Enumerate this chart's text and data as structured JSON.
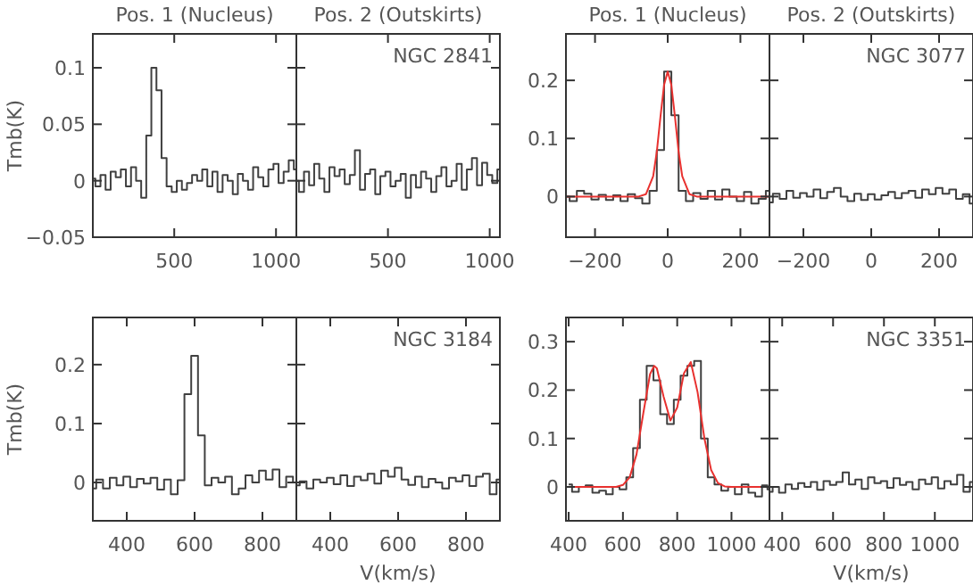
{
  "chart_data": [
    {
      "type": "step",
      "title": "Pos. 1 (Nucleus)",
      "ylabel": "Tmb(K)",
      "xlim": [
        100,
        1100
      ],
      "ylim": [
        -0.05,
        0.13
      ],
      "xticks": [
        500,
        1000
      ],
      "yticks": [
        {
          "value": -0.05,
          "label": "−0.05"
        },
        0,
        0.05,
        0.1
      ],
      "x": [
        100,
        125,
        150,
        175,
        200,
        225,
        250,
        275,
        300,
        325,
        350,
        375,
        400,
        425,
        450,
        475,
        500,
        525,
        550,
        575,
        600,
        625,
        650,
        675,
        700,
        725,
        750,
        775,
        800,
        825,
        850,
        875,
        900,
        925,
        950,
        975,
        1000,
        1025,
        1050,
        1075,
        1100
      ],
      "series": [
        {
          "color": "#404040",
          "values": [
            0.002,
            -0.005,
            0.005,
            -0.008,
            0.008,
            0.003,
            0.01,
            -0.005,
            0.012,
            0.0,
            -0.015,
            0.04,
            0.1,
            0.08,
            0.02,
            -0.005,
            -0.01,
            0.0,
            -0.008,
            -0.002,
            0.005,
            0.0,
            0.01,
            -0.005,
            0.008,
            -0.01,
            0.005,
            0.0,
            -0.012,
            0.006,
            0.0,
            -0.008,
            0.012,
            0.003,
            -0.005,
            0.01,
            0.015,
            -0.002,
            0.008,
            0.018,
            0.01
          ]
        }
      ]
    },
    {
      "type": "step",
      "title": "Pos. 2 (Outskirts)",
      "annotations": [
        "NGC 2841"
      ],
      "tick_labels": "x",
      "xlim": [
        50,
        1050
      ],
      "ylim": [
        -0.05,
        0.13
      ],
      "xticks": [
        500,
        1000
      ],
      "yticks": [
        -0.05,
        0,
        0.05,
        0.1
      ],
      "x": [
        50,
        75,
        100,
        125,
        150,
        175,
        200,
        225,
        250,
        275,
        300,
        325,
        350,
        375,
        400,
        425,
        450,
        475,
        500,
        525,
        550,
        575,
        600,
        625,
        650,
        675,
        700,
        725,
        750,
        775,
        800,
        825,
        850,
        875,
        900,
        925,
        950,
        975,
        1000,
        1025,
        1050
      ],
      "series": [
        {
          "color": "#404040",
          "values": [
            0.0,
            -0.01,
            0.008,
            -0.004,
            0.015,
            0.002,
            -0.01,
            0.012,
            0.004,
            0.01,
            -0.003,
            0.005,
            0.027,
            -0.008,
            0.006,
            0.01,
            -0.012,
            0.004,
            0.008,
            -0.005,
            0.0,
            0.006,
            -0.015,
            0.005,
            -0.006,
            0.008,
            0.002,
            -0.01,
            0.004,
            0.012,
            -0.005,
            0.0,
            0.015,
            -0.008,
            0.01,
            0.02,
            -0.004,
            0.016,
            0.005,
            -0.002,
            0.01
          ]
        }
      ]
    },
    {
      "type": "step",
      "title": "Pos. 1 (Nucleus)",
      "xlim": [
        -280,
        280
      ],
      "ylim": [
        -0.07,
        0.28
      ],
      "xticks": [
        {
          "value": -200,
          "label": "−200"
        },
        0,
        200
      ],
      "yticks": [
        0,
        0.1,
        0.2
      ],
      "x": [
        -280,
        -260,
        -240,
        -220,
        -200,
        -180,
        -160,
        -140,
        -120,
        -100,
        -80,
        -60,
        -40,
        -20,
        0,
        20,
        40,
        60,
        80,
        100,
        120,
        140,
        160,
        180,
        200,
        220,
        240,
        260,
        280
      ],
      "series": [
        {
          "color": "#404040",
          "values": [
            0.0,
            -0.008,
            0.01,
            0.005,
            -0.005,
            0.003,
            -0.006,
            0.002,
            -0.008,
            0.004,
            -0.003,
            -0.012,
            0.01,
            0.08,
            0.215,
            0.14,
            0.01,
            -0.008,
            0.006,
            -0.004,
            0.01,
            -0.005,
            0.012,
            0.0,
            -0.008,
            0.008,
            -0.012,
            -0.004,
            0.01
          ]
        },
        {
          "type": "line",
          "color": "#e8312f",
          "x": [
            -280,
            -80,
            -60,
            -40,
            -30,
            -20,
            -10,
            0,
            10,
            20,
            30,
            40,
            60,
            80,
            280
          ],
          "values": [
            0,
            0,
            0.004,
            0.035,
            0.077,
            0.137,
            0.192,
            0.215,
            0.192,
            0.137,
            0.077,
            0.035,
            0.004,
            0,
            0
          ]
        }
      ]
    },
    {
      "type": "step",
      "title": "Pos. 2 (Outskirts)",
      "annotations": [
        "NGC 3077"
      ],
      "tick_labels": "x",
      "xlim": [
        -300,
        300
      ],
      "ylim": [
        -0.07,
        0.28
      ],
      "xticks": [
        {
          "value": -200,
          "label": "−200"
        },
        0,
        200
      ],
      "yticks": [
        0,
        0.1,
        0.2
      ],
      "x": [
        -300,
        -280,
        -260,
        -240,
        -220,
        -200,
        -180,
        -160,
        -140,
        -120,
        -100,
        -80,
        -60,
        -40,
        -20,
        0,
        20,
        40,
        60,
        80,
        100,
        120,
        140,
        160,
        180,
        200,
        220,
        240,
        260,
        280,
        300
      ],
      "series": [
        {
          "color": "#404040",
          "values": [
            -0.01,
            0.005,
            -0.004,
            0.01,
            -0.002,
            0.006,
            0.0,
            0.012,
            -0.003,
            0.008,
            0.015,
            0.0,
            -0.008,
            0.005,
            -0.006,
            0.004,
            -0.005,
            0.002,
            0.008,
            -0.003,
            0.006,
            0.01,
            -0.002,
            0.012,
            0.004,
            0.015,
            0.005,
            0.012,
            -0.004,
            0.004,
            -0.012
          ]
        }
      ]
    },
    {
      "type": "step",
      "ylabel": "Tmb(K)",
      "xlim": [
        300,
        900
      ],
      "ylim": [
        -0.065,
        0.28
      ],
      "xticks": [
        400,
        600,
        800
      ],
      "yticks": [
        0,
        0.1,
        0.2
      ],
      "x": [
        300,
        320,
        340,
        360,
        380,
        400,
        420,
        440,
        460,
        480,
        500,
        520,
        540,
        560,
        580,
        600,
        620,
        640,
        660,
        680,
        700,
        720,
        740,
        760,
        780,
        800,
        820,
        840,
        860,
        880,
        900
      ],
      "series": [
        {
          "color": "#404040",
          "values": [
            -0.01,
            0.005,
            -0.01,
            0.008,
            -0.005,
            0.01,
            -0.008,
            0.006,
            -0.002,
            0.008,
            -0.012,
            0.005,
            -0.02,
            0.004,
            0.15,
            0.215,
            0.08,
            -0.005,
            0.008,
            0.0,
            0.01,
            -0.02,
            -0.01,
            0.012,
            0.0,
            0.02,
            0.005,
            0.022,
            -0.008,
            0.01,
            0.0
          ]
        }
      ]
    },
    {
      "type": "step",
      "annotations": [
        "NGC 3184"
      ],
      "xlabel": "V(km/s)",
      "tick_labels": "x",
      "xlim": [
        300,
        900
      ],
      "ylim": [
        -0.065,
        0.28
      ],
      "xticks": [
        400,
        600,
        800
      ],
      "yticks": [
        0,
        0.1,
        0.2
      ],
      "x": [
        300,
        320,
        340,
        360,
        380,
        400,
        420,
        440,
        460,
        480,
        500,
        520,
        540,
        560,
        580,
        600,
        620,
        640,
        660,
        680,
        700,
        720,
        740,
        760,
        780,
        800,
        820,
        840,
        860,
        880,
        900
      ],
      "series": [
        {
          "color": "#404040",
          "values": [
            -0.005,
            0.002,
            -0.01,
            0.005,
            0.0,
            0.008,
            -0.003,
            0.012,
            -0.006,
            0.01,
            0.004,
            0.015,
            -0.002,
            0.02,
            0.01,
            0.025,
            0.005,
            -0.004,
            0.01,
            -0.008,
            0.006,
            0.0,
            -0.01,
            0.008,
            0.002,
            0.012,
            -0.006,
            0.01,
            0.015,
            -0.02,
            0.005
          ]
        }
      ]
    },
    {
      "type": "step",
      "xlim": [
        390,
        1140
      ],
      "ylim": [
        -0.07,
        0.35
      ],
      "xticks": [
        400,
        600,
        800,
        1000
      ],
      "yticks": [
        0,
        0.1,
        0.2,
        0.3
      ],
      "x": [
        400,
        425,
        450,
        475,
        500,
        525,
        550,
        575,
        600,
        625,
        650,
        675,
        700,
        725,
        750,
        775,
        800,
        825,
        850,
        875,
        900,
        925,
        950,
        975,
        1000,
        1025,
        1050,
        1075,
        1100,
        1125,
        1140
      ],
      "series": [
        {
          "color": "#404040",
          "values": [
            0.005,
            -0.01,
            0.0,
            0.003,
            -0.012,
            -0.008,
            -0.015,
            0.0,
            -0.005,
            0.02,
            0.08,
            0.18,
            0.25,
            0.22,
            0.15,
            0.13,
            0.18,
            0.23,
            0.25,
            0.26,
            0.1,
            0.02,
            0.005,
            -0.008,
            0.0,
            -0.015,
            0.005,
            -0.012,
            -0.02,
            0.003,
            -0.005
          ]
        },
        {
          "type": "line",
          "color": "#e8312f",
          "x": [
            390,
            575,
            600,
            625,
            650,
            675,
            700,
            715,
            725,
            750,
            775,
            800,
            825,
            850,
            875,
            900,
            925,
            950,
            975,
            1000,
            1140
          ],
          "values": [
            0,
            0,
            0.004,
            0.02,
            0.067,
            0.152,
            0.233,
            0.25,
            0.245,
            0.186,
            0.137,
            0.164,
            0.235,
            0.258,
            0.196,
            0.101,
            0.035,
            0.008,
            0.001,
            0,
            0
          ]
        }
      ]
    },
    {
      "type": "step",
      "annotations": [
        "NGC 3351"
      ],
      "xlabel": "V(km/s)",
      "tick_labels": "x",
      "xlim": [
        350,
        1150
      ],
      "ylim": [
        -0.07,
        0.35
      ],
      "xticks": [
        400,
        600,
        800,
        1000
      ],
      "yticks": [
        0,
        0.1,
        0.2,
        0.3
      ],
      "x": [
        350,
        375,
        400,
        425,
        450,
        475,
        500,
        525,
        550,
        575,
        600,
        625,
        650,
        675,
        700,
        725,
        750,
        775,
        800,
        825,
        850,
        875,
        900,
        925,
        950,
        975,
        1000,
        1025,
        1050,
        1075,
        1100,
        1125,
        1150
      ],
      "series": [
        {
          "color": "#404040",
          "values": [
            -0.01,
            0.0,
            -0.012,
            0.005,
            -0.004,
            0.008,
            0.0,
            0.01,
            -0.006,
            0.012,
            0.004,
            0.01,
            0.03,
            0.005,
            0.015,
            -0.004,
            0.02,
            0.008,
            0.012,
            -0.002,
            0.018,
            0.004,
            0.01,
            -0.005,
            0.015,
            0.006,
            0.02,
            -0.003,
            0.012,
            0.005,
            0.025,
            -0.01,
            0.01
          ]
        }
      ]
    }
  ]
}
